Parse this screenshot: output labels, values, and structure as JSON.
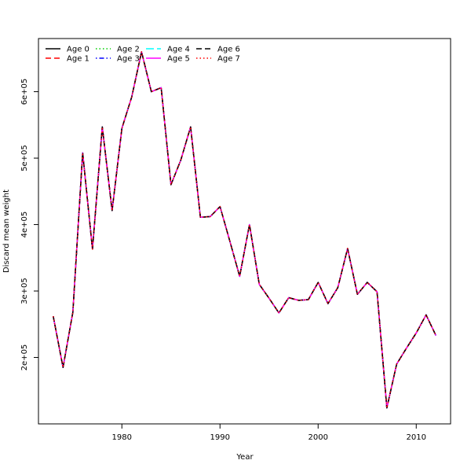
{
  "chart_data": {
    "type": "line",
    "xlabel": "Year",
    "ylabel": "Discard mean weight",
    "xlim": [
      1971.5,
      2013.5
    ],
    "ylim": [
      100000,
      680000
    ],
    "x_ticks": [
      1980,
      1990,
      2000,
      2010
    ],
    "y_ticks": [
      200000,
      300000,
      400000,
      500000,
      600000
    ],
    "x_tick_labels": [
      "1980",
      "1990",
      "2000",
      "2010"
    ],
    "y_tick_labels": [
      "2e+05",
      "3e+05",
      "4e+05",
      "5e+05",
      "6e+05"
    ],
    "grid": false,
    "legend_position": "top-left",
    "x": [
      1973,
      1974,
      1975,
      1976,
      1977,
      1978,
      1979,
      1980,
      1981,
      1982,
      1983,
      1984,
      1985,
      1986,
      1987,
      1988,
      1989,
      1990,
      1991,
      1992,
      1993,
      1994,
      1995,
      1996,
      1997,
      1998,
      1999,
      2000,
      2001,
      2002,
      2003,
      2004,
      2005,
      2006,
      2007,
      2008,
      2009,
      2010,
      2011,
      2012
    ],
    "y": [
      262000,
      185000,
      268000,
      508000,
      363000,
      547000,
      421000,
      545000,
      592000,
      660000,
      600000,
      606000,
      460000,
      497000,
      547000,
      411000,
      412000,
      427000,
      375000,
      322000,
      400000,
      310000,
      289000,
      267000,
      290000,
      286000,
      287000,
      313000,
      281000,
      305000,
      364000,
      295000,
      313000,
      299000,
      124000,
      190000,
      214000,
      237000,
      264000,
      233000
    ],
    "series": [
      {
        "name": "Age 0",
        "color": "#000000",
        "dash": "solid"
      },
      {
        "name": "Age 1",
        "color": "#ff0000",
        "dash": "dashed"
      },
      {
        "name": "Age 2",
        "color": "#00cd00",
        "dash": "dotted"
      },
      {
        "name": "Age 3",
        "color": "#0000ff",
        "dash": "dotdash"
      },
      {
        "name": "Age 4",
        "color": "#00ffff",
        "dash": "longdash"
      },
      {
        "name": "Age 5",
        "color": "#ff00ff",
        "dash": "solid"
      },
      {
        "name": "Age 6",
        "color": "#000000",
        "dash": "dashed"
      },
      {
        "name": "Age 7",
        "color": "#ff0000",
        "dash": "dotted"
      }
    ]
  }
}
